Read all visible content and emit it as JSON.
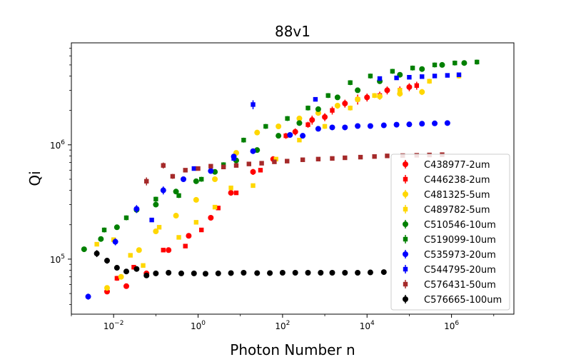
{
  "chart_data": {
    "type": "scatter",
    "title": "88v1",
    "xlabel": "Photon Number n",
    "ylabel": "Qi",
    "xscale": "log",
    "yscale": "log",
    "xlim": [
      0.001,
      30000000
    ],
    "ylim": [
      33000,
      7800000
    ],
    "x_ticks": [
      {
        "value": 0.01,
        "base": "10",
        "exp": "−2"
      },
      {
        "value": 1,
        "base": "10",
        "exp": "0"
      },
      {
        "value": 100,
        "base": "10",
        "exp": "2"
      },
      {
        "value": 10000,
        "base": "10",
        "exp": "4"
      },
      {
        "value": 1000000,
        "base": "10",
        "exp": "6"
      }
    ],
    "y_ticks": [
      {
        "value": 100000,
        "base": "10",
        "exp": "5"
      },
      {
        "value": 1000000,
        "base": "10",
        "exp": "6"
      }
    ],
    "grid": false,
    "legend_position": "lower-right",
    "series": [
      {
        "name": "C438977-2um",
        "color": "#ff0000",
        "marker": "circle",
        "x": [
          0.007,
          0.02,
          0.06,
          0.2,
          0.6,
          2,
          6,
          20,
          60,
          200,
          500,
          1000,
          3000,
          10000,
          30000,
          100000
        ],
        "y": [
          52000,
          58000,
          75000,
          120000,
          160000,
          230000,
          380000,
          580000,
          750000,
          1300000,
          1650000,
          1750000,
          2300000,
          2600000,
          3000000,
          3200000
        ],
        "err": [
          0.05,
          0.04,
          0.03,
          0.03,
          0.03,
          0.03,
          0.03,
          0.06,
          0.06,
          0.07,
          0.09,
          0.08,
          0.08,
          0.08,
          0.08,
          0.08
        ]
      },
      {
        "name": "C446238-2um",
        "color": "#ff0000",
        "marker": "square",
        "x": [
          0.012,
          0.03,
          0.15,
          0.5,
          1.2,
          3,
          8,
          30,
          120,
          400,
          1500,
          6000,
          20000,
          60000,
          150000
        ],
        "y": [
          68000,
          85000,
          120000,
          130000,
          180000,
          280000,
          380000,
          600000,
          1200000,
          1500000,
          2000000,
          2500000,
          2700000,
          3000000,
          3300000
        ],
        "err": [
          0.05,
          0.04,
          0.03,
          0.03,
          0.04,
          0.03,
          0.03,
          0.04,
          0.06,
          0.06,
          0.08,
          0.1,
          0.08,
          0.08,
          0.08
        ]
      },
      {
        "name": "C481325-5um",
        "color": "#ffd700",
        "marker": "circle",
        "x": [
          0.007,
          0.015,
          0.04,
          0.1,
          0.3,
          0.9,
          2.5,
          8,
          25,
          80,
          250,
          700,
          2000,
          6000,
          20000,
          60000,
          200000
        ],
        "y": [
          56000,
          70000,
          120000,
          175000,
          240000,
          330000,
          500000,
          850000,
          1280000,
          1450000,
          1700000,
          1900000,
          2200000,
          2500000,
          2650000,
          2800000,
          2900000
        ],
        "err": [
          0.05,
          0.04,
          0.04,
          0.04,
          0.04,
          0.04,
          0.04,
          0.04,
          0.04,
          0.04,
          0.05,
          0.05,
          0.06,
          0.06,
          0.06,
          0.06,
          0.06
        ]
      },
      {
        "name": "C489782-5um",
        "color": "#ffd700",
        "marker": "square",
        "x": [
          0.004,
          0.01,
          0.025,
          0.05,
          0.12,
          0.35,
          0.9,
          2.5,
          6,
          20,
          70,
          250,
          1000,
          4000,
          15000,
          60000,
          300000,
          1500000
        ],
        "y": [
          135000,
          148000,
          108000,
          88000,
          190000,
          155000,
          210000,
          285000,
          420000,
          440000,
          750000,
          1100000,
          1450000,
          2100000,
          2700000,
          3000000,
          3600000,
          4000000
        ],
        "err": [
          0.04,
          0.04,
          0.03,
          0.03,
          0.03,
          0.03,
          0.03,
          0.03,
          0.03,
          0.03,
          0.04,
          0.04,
          0.05,
          0.05,
          0.05,
          0.05,
          0.05,
          0.05
        ]
      },
      {
        "name": "C510546-10um",
        "color": "#008000",
        "marker": "circle",
        "x": [
          0.002,
          0.005,
          0.012,
          0.035,
          0.1,
          0.3,
          0.9,
          2.5,
          8,
          25,
          80,
          250,
          700,
          2000,
          6000,
          20000,
          60000,
          200000,
          600000,
          2000000
        ],
        "y": [
          122000,
          150000,
          190000,
          270000,
          300000,
          390000,
          480000,
          580000,
          730000,
          900000,
          1200000,
          1550000,
          2050000,
          2600000,
          3000000,
          3600000,
          4100000,
          4600000,
          5000000,
          5200000
        ],
        "err": [
          0.05,
          0.05,
          0.05,
          0.05,
          0.05,
          0.05,
          0.05,
          0.05,
          0.05,
          0.05,
          0.05,
          0.05,
          0.05,
          0.05,
          0.05,
          0.05,
          0.05,
          0.05,
          0.05,
          0.05
        ]
      },
      {
        "name": "C519099-10um",
        "color": "#008000",
        "marker": "square",
        "x": [
          0.006,
          0.02,
          0.1,
          0.35,
          1.2,
          4,
          12,
          40,
          130,
          400,
          1200,
          4000,
          12000,
          40000,
          120000,
          400000,
          1200000,
          4000000
        ],
        "y": [
          180000,
          230000,
          335000,
          360000,
          500000,
          670000,
          1100000,
          1450000,
          1700000,
          2100000,
          2700000,
          3500000,
          4000000,
          4400000,
          4700000,
          5000000,
          5200000,
          5300000
        ],
        "err": [
          0.05,
          0.05,
          0.05,
          0.05,
          0.05,
          0.05,
          0.05,
          0.05,
          0.05,
          0.05,
          0.05,
          0.05,
          0.05,
          0.05,
          0.05,
          0.05,
          0.05,
          0.05
        ]
      },
      {
        "name": "C535973-20um",
        "color": "#0000ff",
        "marker": "circle",
        "x": [
          0.0025,
          0.011,
          0.035,
          0.15,
          0.45,
          2,
          7,
          20,
          150,
          300,
          700,
          1500,
          3000,
          6000,
          12000,
          25000,
          50000,
          100000,
          200000,
          400000,
          800000
        ],
        "y": [
          47000,
          142000,
          275000,
          400000,
          500000,
          590000,
          790000,
          880000,
          1220000,
          1200000,
          1380000,
          1420000,
          1420000,
          1460000,
          1460000,
          1480000,
          1500000,
          1510000,
          1530000,
          1540000,
          1550000
        ],
        "err": [
          0.06,
          0.07,
          0.08,
          0.08,
          0.05,
          0.04,
          0.04,
          0.04,
          0.03,
          0.03,
          0.03,
          0.03,
          0.03,
          0.03,
          0.03,
          0.03,
          0.03,
          0.03,
          0.03,
          0.03,
          0.03
        ]
      },
      {
        "name": "C544795-20um",
        "color": "#0000ff",
        "marker": "square",
        "x": [
          0.08,
          0.8,
          7,
          20,
          600,
          20000,
          50000,
          100000,
          200000,
          400000,
          800000,
          1500000
        ],
        "y": [
          220000,
          620000,
          760000,
          2250000,
          2500000,
          3800000,
          3850000,
          3900000,
          3950000,
          4000000,
          4050000,
          4100000
        ],
        "err": [
          0.04,
          0.04,
          0.05,
          0.09,
          0.04,
          0.03,
          0.03,
          0.03,
          0.03,
          0.03,
          0.03,
          0.03
        ]
      },
      {
        "name": "C576431-50um",
        "color": "#a52a2a",
        "marker": "square",
        "x": [
          0.06,
          0.15,
          0.25,
          0.5,
          1,
          2,
          4,
          8,
          16,
          32,
          64,
          128,
          300,
          700,
          1500,
          3000,
          7000,
          15000,
          30000,
          70000,
          150000,
          300000,
          600000
        ],
        "y": [
          480000,
          660000,
          530000,
          600000,
          620000,
          650000,
          640000,
          660000,
          680000,
          690000,
          710000,
          720000,
          740000,
          750000,
          760000,
          770000,
          780000,
          790000,
          800000,
          805000,
          810000,
          815000,
          820000
        ],
        "err": [
          0.08,
          0.06,
          0.05,
          0.04,
          0.03,
          0.03,
          0.03,
          0.03,
          0.03,
          0.03,
          0.03,
          0.03,
          0.03,
          0.03,
          0.03,
          0.03,
          0.03,
          0.03,
          0.03,
          0.03,
          0.03,
          0.03,
          0.03
        ]
      },
      {
        "name": "C576665-100um",
        "color": "#000000",
        "marker": "circle",
        "x": [
          0.004,
          0.007,
          0.012,
          0.02,
          0.035,
          0.06,
          0.1,
          0.2,
          0.4,
          0.8,
          1.5,
          3,
          6,
          12,
          25,
          50,
          100,
          200,
          400,
          800,
          1500,
          3000,
          6000,
          12000,
          25000
        ],
        "y": [
          112000,
          97000,
          84000,
          78000,
          82000,
          72000,
          75000,
          76000,
          75000,
          75000,
          74500,
          75000,
          75500,
          76000,
          75500,
          75500,
          76000,
          76000,
          76000,
          76000,
          76000,
          76000,
          76000,
          76500,
          77000
        ],
        "err": [
          0.07,
          0.06,
          0.04,
          0.03,
          0.03,
          0.03,
          0.02,
          0.02,
          0.02,
          0.02,
          0.02,
          0.02,
          0.02,
          0.02,
          0.02,
          0.02,
          0.02,
          0.02,
          0.02,
          0.02,
          0.02,
          0.02,
          0.02,
          0.02,
          0.02
        ]
      }
    ]
  }
}
